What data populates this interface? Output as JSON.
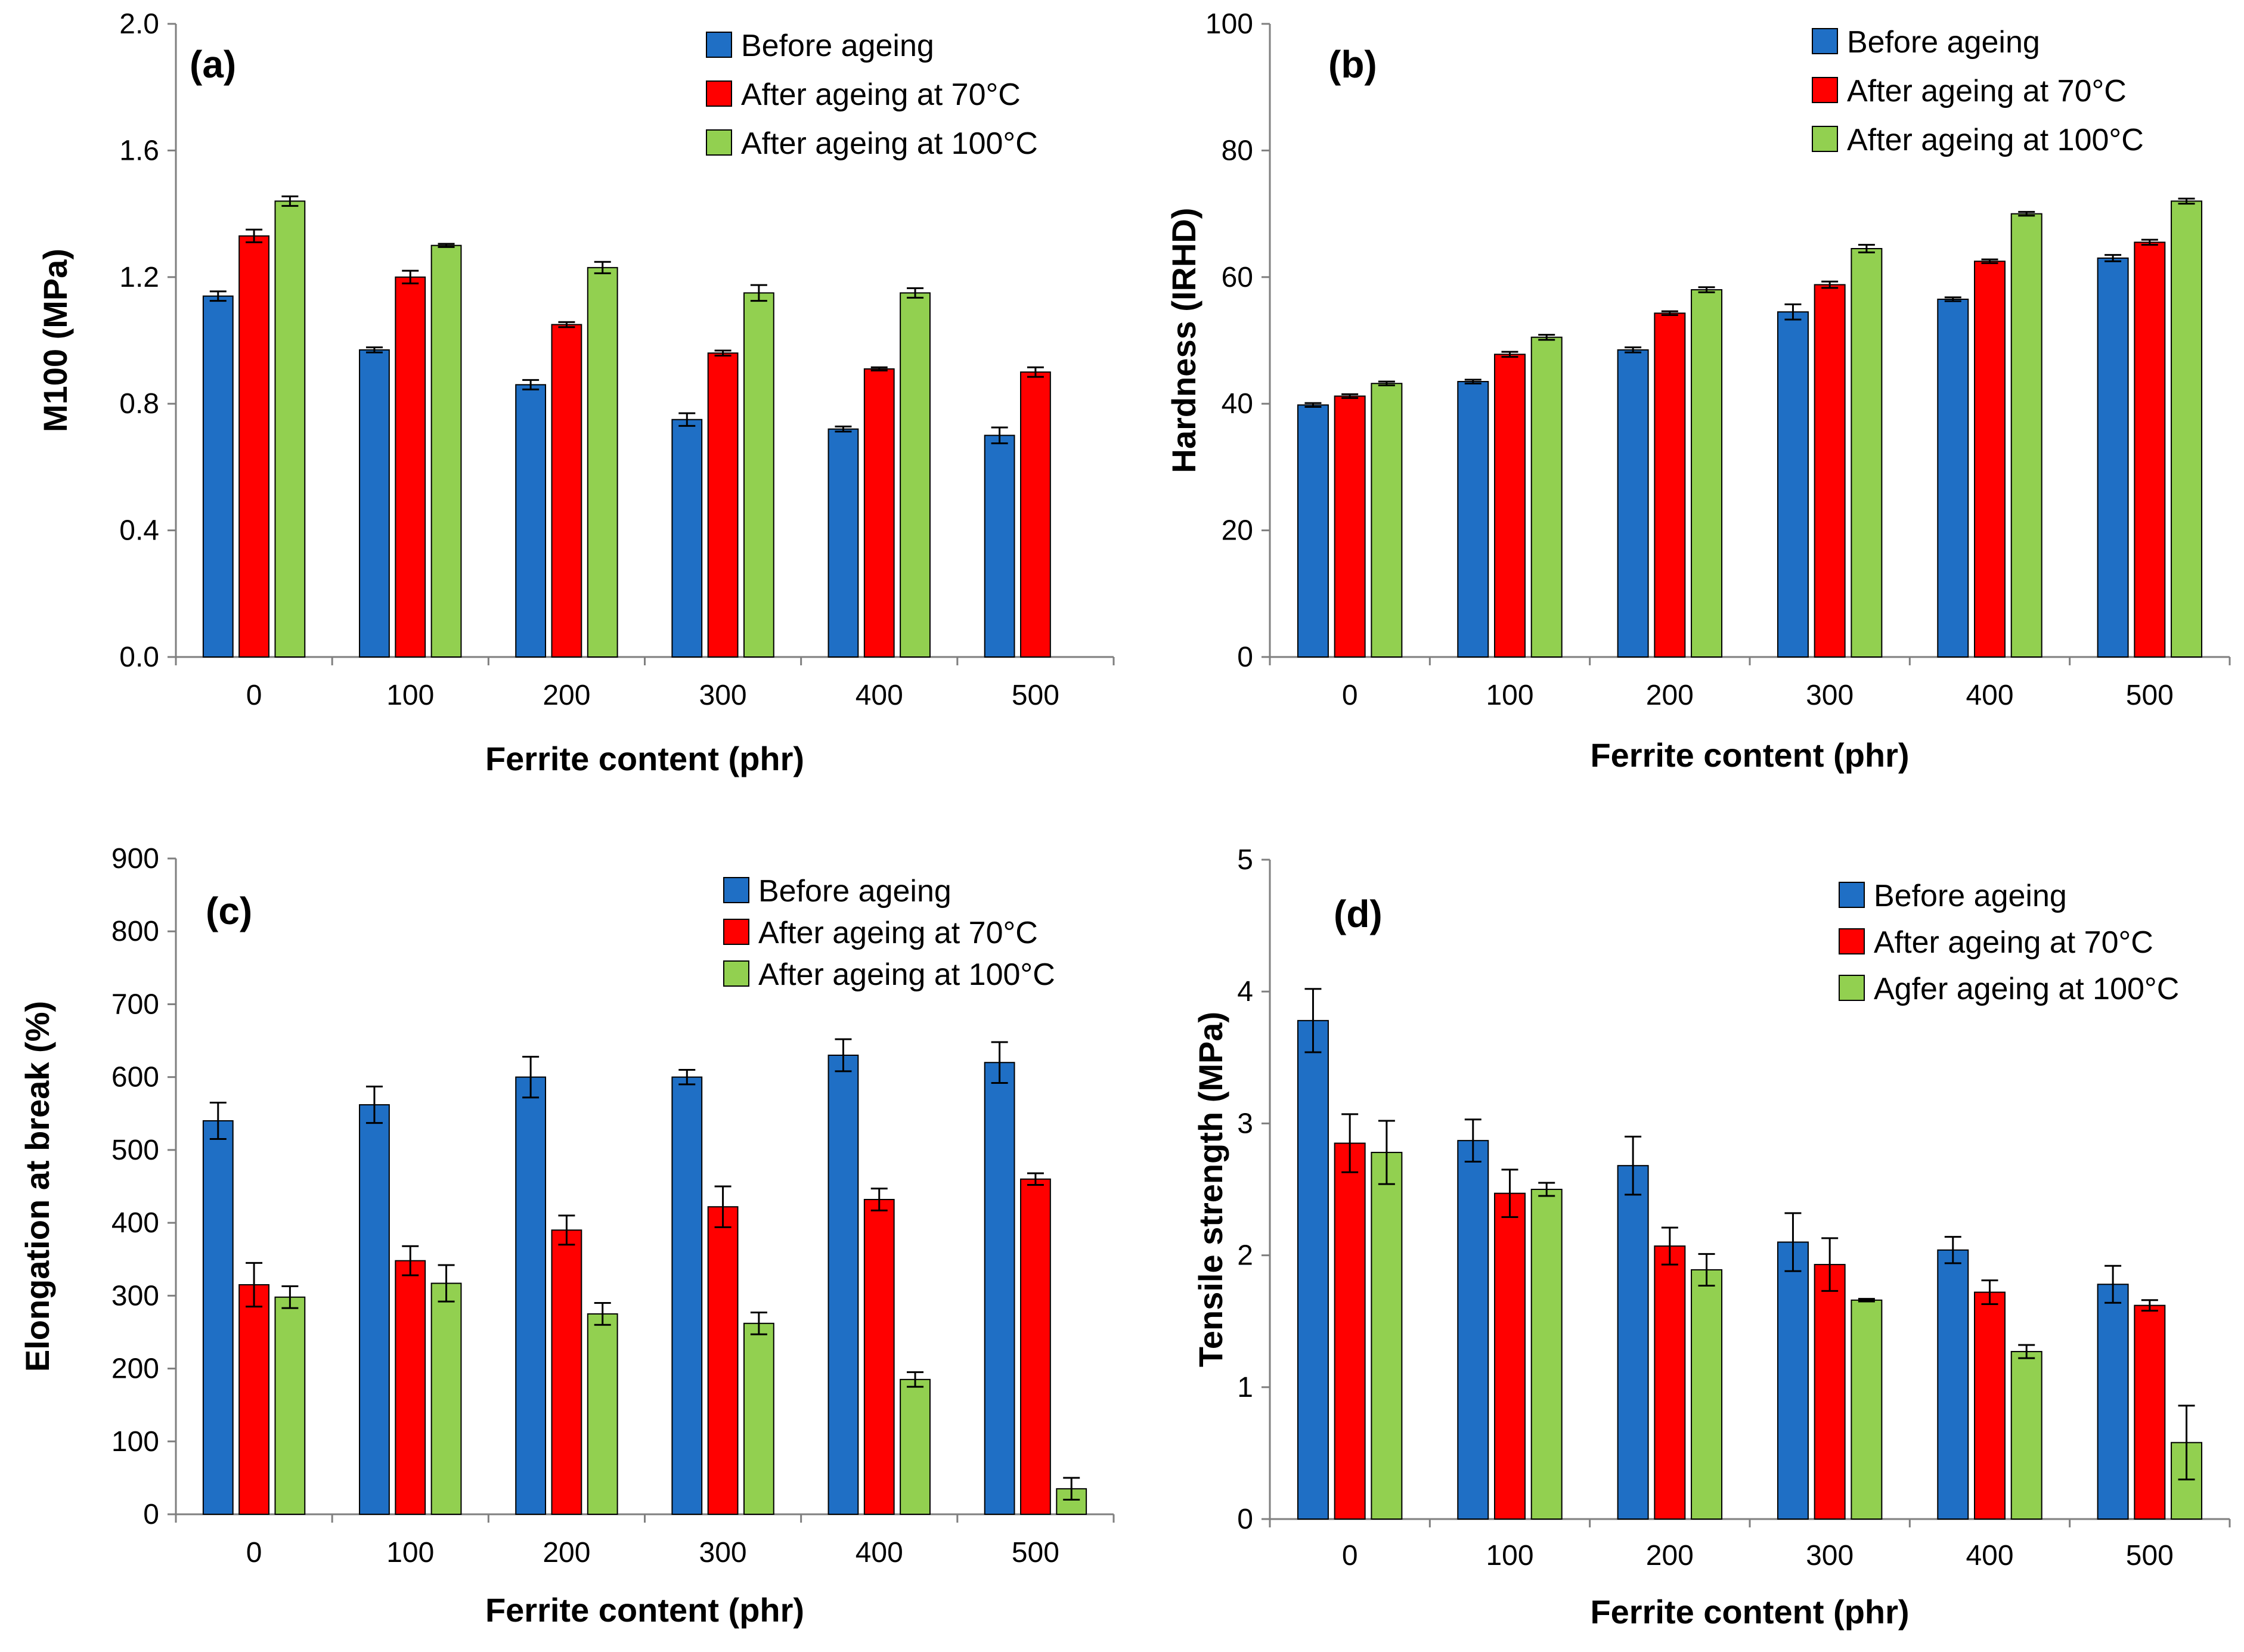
{
  "colors": {
    "before": "#1f6fc5",
    "after70": "#ff0000",
    "after100": "#92d050",
    "axis": "#7f7f7f",
    "bar_edge": "#000000"
  },
  "chart_data": [
    {
      "type": "bar",
      "panel": "(a)",
      "categories": [
        "0",
        "100",
        "200",
        "300",
        "400",
        "500"
      ],
      "xlabel": "Ferrite content (phr)",
      "ylabel": "M100 (MPa)",
      "ylim": [
        0,
        2.0
      ],
      "yticks": [
        "0.0",
        "0.4",
        "0.8",
        "1.2",
        "1.6",
        "2.0"
      ],
      "legend_position": "top-right",
      "series": [
        {
          "name": "Before ageing",
          "values": [
            1.14,
            0.97,
            0.86,
            0.75,
            0.72,
            0.7
          ],
          "errors": [
            0.015,
            0.008,
            0.015,
            0.02,
            0.008,
            0.025
          ]
        },
        {
          "name": "After ageing at 70°C",
          "values": [
            1.33,
            1.2,
            1.05,
            0.96,
            0.91,
            0.9
          ],
          "errors": [
            0.02,
            0.02,
            0.008,
            0.008,
            0.005,
            0.015
          ]
        },
        {
          "name": "After ageing at 100°C",
          "values": [
            1.44,
            1.3,
            1.23,
            1.15,
            1.15,
            null
          ],
          "errors": [
            0.015,
            0.005,
            0.018,
            0.025,
            0.015,
            0
          ]
        }
      ]
    },
    {
      "type": "bar",
      "panel": "(b)",
      "categories": [
        "0",
        "100",
        "200",
        "300",
        "400",
        "500"
      ],
      "xlabel": "Ferrite content (phr)",
      "ylabel": "Hardness (IRHD)",
      "ylim": [
        0,
        100
      ],
      "yticks": [
        "0",
        "20",
        "40",
        "60",
        "80",
        "100"
      ],
      "legend_position": "top-right",
      "series": [
        {
          "name": "Before ageing",
          "values": [
            39.8,
            43.5,
            48.5,
            54.5,
            56.5,
            63.0
          ],
          "errors": [
            0.3,
            0.3,
            0.4,
            1.2,
            0.3,
            0.5
          ]
        },
        {
          "name": "After ageing at 70°C",
          "values": [
            41.2,
            47.8,
            54.3,
            58.8,
            62.5,
            65.5
          ],
          "errors": [
            0.3,
            0.4,
            0.3,
            0.5,
            0.3,
            0.4
          ]
        },
        {
          "name": "After ageing at 100°C",
          "values": [
            43.2,
            50.5,
            58.0,
            64.5,
            70.0,
            72.0
          ],
          "errors": [
            0.3,
            0.4,
            0.4,
            0.6,
            0.3,
            0.4
          ]
        }
      ]
    },
    {
      "type": "bar",
      "panel": "(c)",
      "categories": [
        "0",
        "100",
        "200",
        "300",
        "400",
        "500"
      ],
      "xlabel": "Ferrite content (phr)",
      "ylabel": "Elongation at break (%)",
      "ylim": [
        0,
        900
      ],
      "yticks": [
        "0",
        "100",
        "200",
        "300",
        "400",
        "500",
        "600",
        "700",
        "800",
        "900"
      ],
      "legend_position": "top-right",
      "series": [
        {
          "name": "Before ageing",
          "values": [
            540,
            562,
            600,
            600,
            630,
            620
          ],
          "errors": [
            25,
            25,
            28,
            10,
            22,
            28
          ]
        },
        {
          "name": "After ageing at 70°C",
          "values": [
            315,
            348,
            390,
            422,
            432,
            460
          ],
          "errors": [
            30,
            20,
            20,
            28,
            15,
            8
          ]
        },
        {
          "name": "After ageing at 100°C",
          "values": [
            298,
            317,
            275,
            262,
            185,
            35
          ],
          "errors": [
            15,
            25,
            15,
            15,
            10,
            15
          ]
        }
      ]
    },
    {
      "type": "bar",
      "panel": "(d)",
      "categories": [
        "0",
        "100",
        "200",
        "300",
        "400",
        "500"
      ],
      "xlabel": "Ferrite content (phr)",
      "ylabel": "Tensile strength (MPa)",
      "ylim": [
        0,
        5
      ],
      "yticks": [
        "0",
        "1",
        "2",
        "3",
        "4",
        "5"
      ],
      "legend_position": "top-right",
      "series": [
        {
          "name": "Before ageing",
          "values": [
            3.78,
            2.87,
            2.68,
            2.1,
            2.04,
            1.78
          ],
          "errors": [
            0.24,
            0.16,
            0.22,
            0.22,
            0.1,
            0.14
          ]
        },
        {
          "name": "After ageing at 70°C",
          "values": [
            2.85,
            2.47,
            2.07,
            1.93,
            1.72,
            1.62
          ],
          "errors": [
            0.22,
            0.18,
            0.14,
            0.2,
            0.09,
            0.04
          ]
        },
        {
          "name": "Agfer ageing at 100°C",
          "values": [
            2.78,
            2.5,
            1.89,
            1.66,
            1.27,
            0.58
          ],
          "errors": [
            0.24,
            0.05,
            0.12,
            0.01,
            0.05,
            0.28
          ]
        }
      ]
    }
  ]
}
